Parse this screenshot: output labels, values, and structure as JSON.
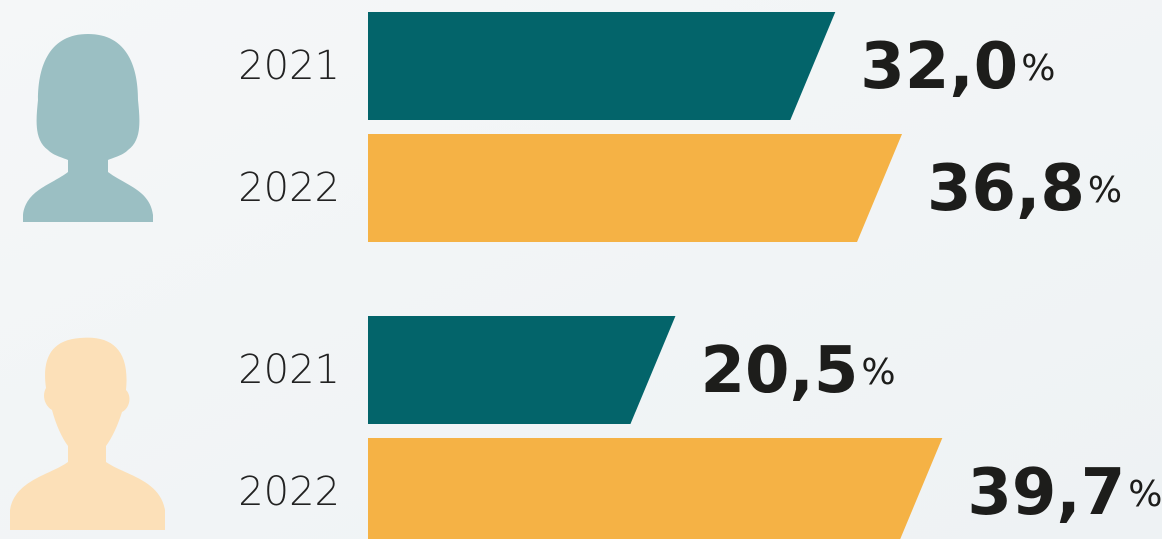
{
  "chart_data": {
    "type": "bar",
    "orientation": "horizontal",
    "categories": [
      null,
      null
    ],
    "series": [
      {
        "name": "2021",
        "color": "#03646a",
        "values": [
          32.0,
          20.5
        ],
        "value_labels": [
          "32,0%",
          "20,5%"
        ]
      },
      {
        "name": "2022",
        "color": "#f5b245",
        "values": [
          36.8,
          39.7
        ],
        "value_labels": [
          "36,8%",
          "39,7%"
        ]
      }
    ],
    "xlim": [
      0,
      40
    ]
  }
}
